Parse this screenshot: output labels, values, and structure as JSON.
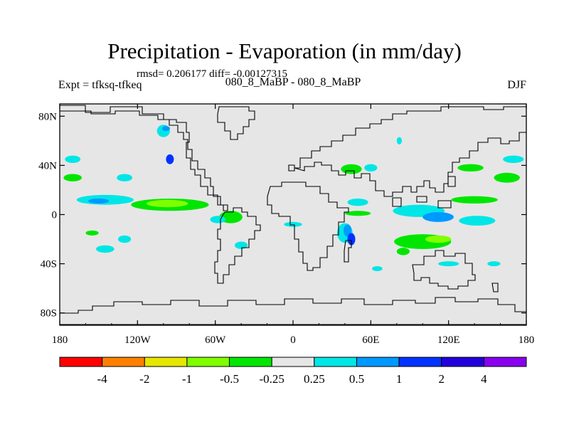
{
  "chart_data": {
    "type": "heatmap",
    "title": "Precipitation - Evaporation (in mm/day)",
    "stats": "rmsd= 0.206177 diff= -0.00127315",
    "case_label": "Expt = tfksq-tfkeq",
    "center_label": "080_8_MaBP - 080_8_MaBP",
    "season": "DJF",
    "xlim": [
      -180,
      180
    ],
    "ylim": [
      -90,
      90
    ],
    "x_ticks": [
      {
        "value": -180,
        "label": "180"
      },
      {
        "value": -120,
        "label": "120W"
      },
      {
        "value": -60,
        "label": "60W"
      },
      {
        "value": 0,
        "label": "0"
      },
      {
        "value": 60,
        "label": "60E"
      },
      {
        "value": 120,
        "label": "120E"
      },
      {
        "value": 180,
        "label": "180"
      }
    ],
    "y_ticks": [
      {
        "value": 80,
        "label": "80N"
      },
      {
        "value": 40,
        "label": "40N"
      },
      {
        "value": 0,
        "label": "0"
      },
      {
        "value": -40,
        "label": "40S"
      },
      {
        "value": -80,
        "label": "80S"
      }
    ],
    "colorbar": {
      "colors": [
        "#ff0000",
        "#ff8000",
        "#e6e600",
        "#80ff00",
        "#00e600",
        "#e6e6e6",
        "#00e6e6",
        "#0099ff",
        "#0033ff",
        "#2200dd",
        "#8800ee"
      ],
      "labels": [
        "-4",
        "-2",
        "-1",
        "-0.5",
        "-0.25",
        "0.25",
        "0.5",
        "1",
        "2",
        "4"
      ]
    },
    "background_color": "#e6e6e6",
    "anomalies": [
      {
        "lon": -95,
        "lat": 45,
        "rx": 3,
        "ry": 4,
        "level": 3
      },
      {
        "lon": -100,
        "lat": 68,
        "rx": 5,
        "ry": 5,
        "level": 1
      },
      {
        "lon": -98,
        "lat": 70,
        "rx": 3,
        "ry": 2,
        "level": 2
      },
      {
        "lon": -170,
        "lat": 45,
        "rx": 6,
        "ry": 3,
        "level": 1
      },
      {
        "lon": -170,
        "lat": 30,
        "rx": 7,
        "ry": 3,
        "level": -1
      },
      {
        "lon": -130,
        "lat": 30,
        "rx": 6,
        "ry": 3,
        "level": 1
      },
      {
        "lon": -145,
        "lat": 12,
        "rx": 22,
        "ry": 4,
        "level": 1
      },
      {
        "lon": -150,
        "lat": 11,
        "rx": 8,
        "ry": 2,
        "level": 2
      },
      {
        "lon": -95,
        "lat": 8,
        "rx": 30,
        "ry": 5,
        "level": -1
      },
      {
        "lon": -97,
        "lat": 9,
        "rx": 16,
        "ry": 3,
        "level": -2
      },
      {
        "lon": -48,
        "lat": -2,
        "rx": 9,
        "ry": 5,
        "level": -1
      },
      {
        "lon": -58,
        "lat": -4,
        "rx": 6,
        "ry": 3,
        "level": 1
      },
      {
        "lon": -155,
        "lat": -15,
        "rx": 5,
        "ry": 2,
        "level": -1
      },
      {
        "lon": -130,
        "lat": -20,
        "rx": 5,
        "ry": 3,
        "level": 1
      },
      {
        "lon": -145,
        "lat": -28,
        "rx": 7,
        "ry": 3,
        "level": 1
      },
      {
        "lon": -40,
        "lat": -25,
        "rx": 5,
        "ry": 3,
        "level": 1
      },
      {
        "lon": 0,
        "lat": -8,
        "rx": 7,
        "ry": 2,
        "level": 1
      },
      {
        "lon": 50,
        "lat": 10,
        "rx": 8,
        "ry": 3,
        "level": 1
      },
      {
        "lon": 50,
        "lat": 1,
        "rx": 10,
        "ry": 2,
        "level": -1
      },
      {
        "lon": 40,
        "lat": -15,
        "rx": 6,
        "ry": 8,
        "level": 1
      },
      {
        "lon": 42,
        "lat": -13,
        "rx": 3,
        "ry": 5,
        "level": 2
      },
      {
        "lon": 45,
        "lat": -20,
        "rx": 3,
        "ry": 5,
        "level": 3
      },
      {
        "lon": 45,
        "lat": 37,
        "rx": 8,
        "ry": 4,
        "level": -1
      },
      {
        "lon": 60,
        "lat": 38,
        "rx": 5,
        "ry": 3,
        "level": 1
      },
      {
        "lon": 82,
        "lat": 60,
        "rx": 2,
        "ry": 3,
        "level": 1
      },
      {
        "lon": 97,
        "lat": 3,
        "rx": 20,
        "ry": 5,
        "level": 1
      },
      {
        "lon": 112,
        "lat": -2,
        "rx": 12,
        "ry": 4,
        "level": 2
      },
      {
        "lon": 142,
        "lat": -5,
        "rx": 14,
        "ry": 4,
        "level": 1
      },
      {
        "lon": 140,
        "lat": 12,
        "rx": 18,
        "ry": 3,
        "level": -1
      },
      {
        "lon": 165,
        "lat": 30,
        "rx": 10,
        "ry": 4,
        "level": -1
      },
      {
        "lon": 137,
        "lat": 38,
        "rx": 10,
        "ry": 3,
        "level": -1
      },
      {
        "lon": 100,
        "lat": -22,
        "rx": 22,
        "ry": 6,
        "level": -1
      },
      {
        "lon": 112,
        "lat": -20,
        "rx": 10,
        "ry": 3,
        "level": -2
      },
      {
        "lon": 85,
        "lat": -30,
        "rx": 5,
        "ry": 3,
        "level": -1
      },
      {
        "lon": 170,
        "lat": 45,
        "rx": 8,
        "ry": 3,
        "level": 1
      },
      {
        "lon": 120,
        "lat": -40,
        "rx": 8,
        "ry": 2,
        "level": 1
      },
      {
        "lon": 65,
        "lat": -44,
        "rx": 4,
        "ry": 2,
        "level": 1
      },
      {
        "lon": 155,
        "lat": -40,
        "rx": 5,
        "ry": 2,
        "level": 1
      }
    ]
  }
}
